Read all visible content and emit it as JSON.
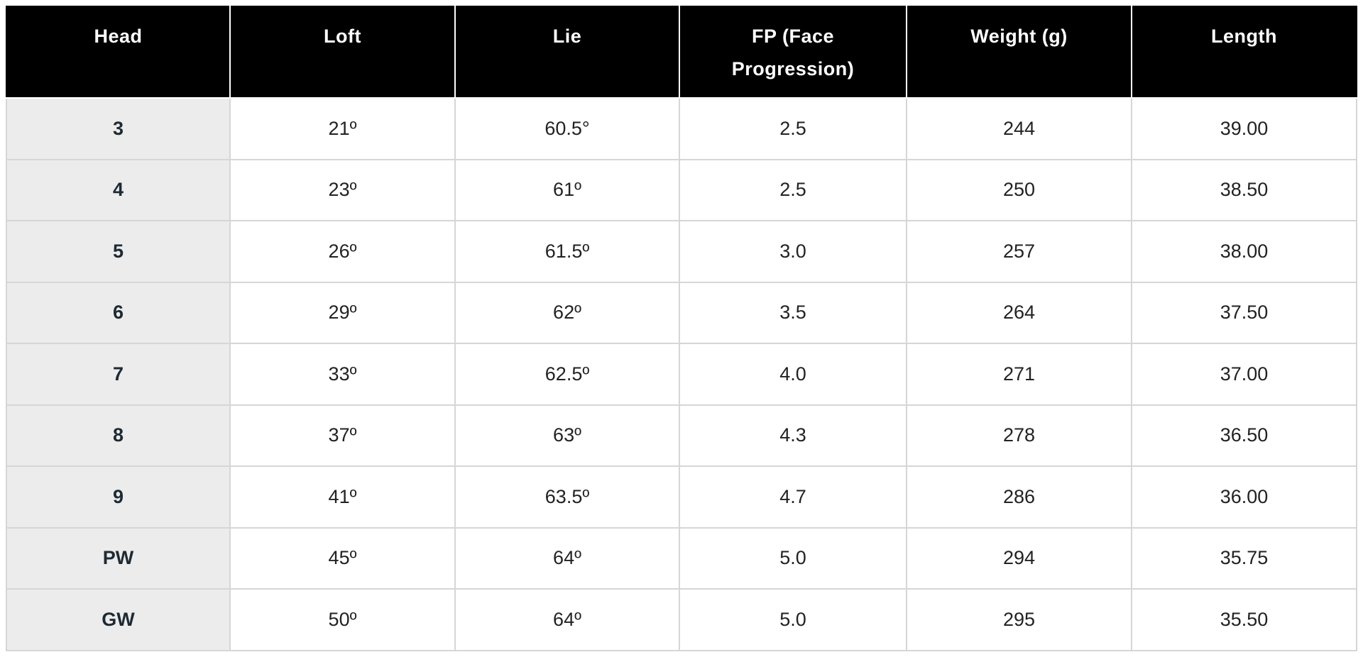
{
  "table": {
    "columns": [
      "Head",
      "Loft",
      "Lie",
      "FP (Face Progression)",
      "Weight (g)",
      "Length"
    ],
    "rows": [
      [
        "3",
        "21º",
        "60.5°",
        "2.5",
        "244",
        "39.00"
      ],
      [
        "4",
        "23º",
        "61º",
        "2.5",
        "250",
        "38.50"
      ],
      [
        "5",
        "26º",
        "61.5º",
        "3.0",
        "257",
        "38.00"
      ],
      [
        "6",
        "29º",
        "62º",
        "3.5",
        "264",
        "37.50"
      ],
      [
        "7",
        "33º",
        "62.5º",
        "4.0",
        "271",
        "37.00"
      ],
      [
        "8",
        "37º",
        "63º",
        "4.3",
        "278",
        "36.50"
      ],
      [
        "9",
        "41º",
        "63.5º",
        "4.7",
        "286",
        "36.00"
      ],
      [
        "PW",
        "45º",
        "64º",
        "5.0",
        "294",
        "35.75"
      ],
      [
        "GW",
        "50º",
        "64º",
        "5.0",
        "295",
        "35.50"
      ]
    ]
  }
}
